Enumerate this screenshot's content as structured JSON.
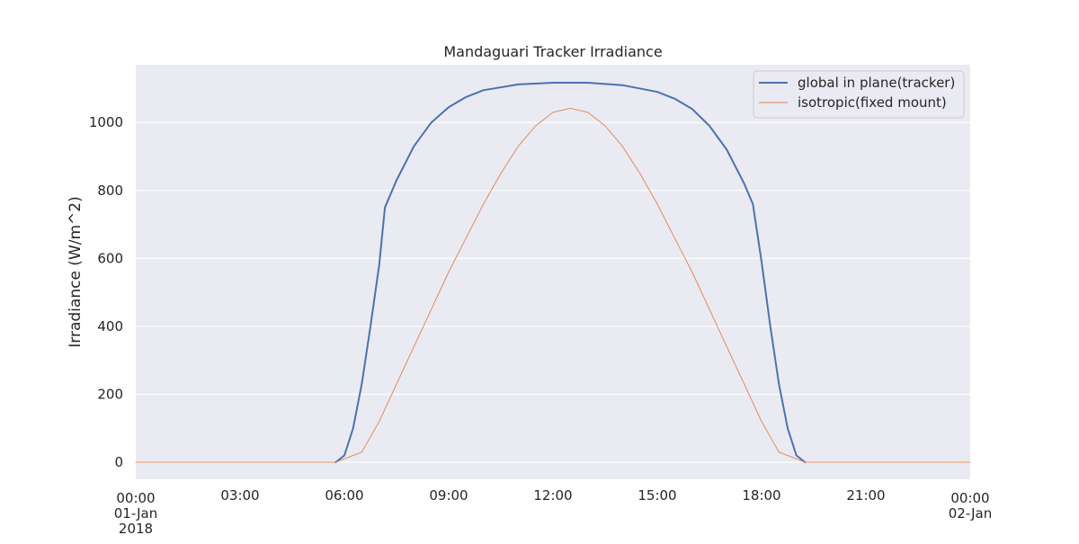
{
  "chart_data": {
    "type": "line",
    "title": "Mandaguari Tracker Irradiance",
    "xlabel": "",
    "ylabel": "Irradiance (W/m^2)",
    "xlim": [
      "2018-01-01 00:00",
      "2018-01-02 00:00"
    ],
    "ylim": [
      -50,
      1170
    ],
    "grid": true,
    "legend_position": "top-right",
    "y_ticks": [
      0,
      200,
      400,
      600,
      800,
      1000
    ],
    "x_ticks": [
      {
        "time": "2018-01-01 00:00",
        "label": [
          "00:00",
          "01-Jan",
          "2018"
        ]
      },
      {
        "time": "2018-01-01 03:00",
        "label": [
          "03:00"
        ]
      },
      {
        "time": "2018-01-01 06:00",
        "label": [
          "06:00"
        ]
      },
      {
        "time": "2018-01-01 09:00",
        "label": [
          "09:00"
        ]
      },
      {
        "time": "2018-01-01 12:00",
        "label": [
          "12:00"
        ]
      },
      {
        "time": "2018-01-01 15:00",
        "label": [
          "15:00"
        ]
      },
      {
        "time": "2018-01-01 18:00",
        "label": [
          "18:00"
        ]
      },
      {
        "time": "2018-01-01 21:00",
        "label": [
          "21:00"
        ]
      },
      {
        "time": "2018-01-02 00:00",
        "label": [
          "00:00",
          "02-Jan"
        ]
      }
    ],
    "series": [
      {
        "name": "global in plane(tracker)",
        "color": "#4c72b0",
        "line_width": "thick",
        "points": [
          [
            "2018-01-01 05:45",
            0
          ],
          [
            "2018-01-01 06:00",
            20
          ],
          [
            "2018-01-01 06:15",
            100
          ],
          [
            "2018-01-01 06:30",
            230
          ],
          [
            "2018-01-01 06:45",
            400
          ],
          [
            "2018-01-01 07:00",
            580
          ],
          [
            "2018-01-01 07:10",
            750
          ],
          [
            "2018-01-01 07:30",
            830
          ],
          [
            "2018-01-01 08:00",
            930
          ],
          [
            "2018-01-01 08:30",
            1000
          ],
          [
            "2018-01-01 09:00",
            1045
          ],
          [
            "2018-01-01 09:30",
            1075
          ],
          [
            "2018-01-01 10:00",
            1095
          ],
          [
            "2018-01-01 11:00",
            1112
          ],
          [
            "2018-01-01 12:00",
            1117
          ],
          [
            "2018-01-01 13:00",
            1117
          ],
          [
            "2018-01-01 14:00",
            1110
          ],
          [
            "2018-01-01 15:00",
            1090
          ],
          [
            "2018-01-01 15:30",
            1070
          ],
          [
            "2018-01-01 16:00",
            1040
          ],
          [
            "2018-01-01 16:30",
            990
          ],
          [
            "2018-01-01 17:00",
            920
          ],
          [
            "2018-01-01 17:30",
            820
          ],
          [
            "2018-01-01 17:45",
            760
          ],
          [
            "2018-01-01 18:00",
            590
          ],
          [
            "2018-01-01 18:15",
            400
          ],
          [
            "2018-01-01 18:30",
            230
          ],
          [
            "2018-01-01 18:45",
            100
          ],
          [
            "2018-01-01 19:00",
            20
          ],
          [
            "2018-01-01 19:15",
            0
          ]
        ]
      },
      {
        "name": "isotropic(fixed mount)",
        "color": "#dd8452",
        "line_width": "thin",
        "points": [
          [
            "2018-01-01 00:00",
            0
          ],
          [
            "2018-01-01 05:45",
            0
          ],
          [
            "2018-01-01 06:30",
            30
          ],
          [
            "2018-01-01 07:00",
            120
          ],
          [
            "2018-01-01 07:30",
            230
          ],
          [
            "2018-01-01 08:00",
            340
          ],
          [
            "2018-01-01 08:30",
            450
          ],
          [
            "2018-01-01 09:00",
            560
          ],
          [
            "2018-01-01 09:30",
            660
          ],
          [
            "2018-01-01 10:00",
            760
          ],
          [
            "2018-01-01 10:30",
            850
          ],
          [
            "2018-01-01 11:00",
            930
          ],
          [
            "2018-01-01 11:30",
            990
          ],
          [
            "2018-01-01 12:00",
            1030
          ],
          [
            "2018-01-01 12:30",
            1042
          ],
          [
            "2018-01-01 13:00",
            1030
          ],
          [
            "2018-01-01 13:30",
            990
          ],
          [
            "2018-01-01 14:00",
            930
          ],
          [
            "2018-01-01 14:30",
            850
          ],
          [
            "2018-01-01 15:00",
            760
          ],
          [
            "2018-01-01 15:30",
            660
          ],
          [
            "2018-01-01 16:00",
            560
          ],
          [
            "2018-01-01 16:30",
            450
          ],
          [
            "2018-01-01 17:00",
            340
          ],
          [
            "2018-01-01 17:30",
            230
          ],
          [
            "2018-01-01 18:00",
            120
          ],
          [
            "2018-01-01 18:30",
            30
          ],
          [
            "2018-01-01 19:15",
            0
          ],
          [
            "2018-01-02 00:00",
            0
          ]
        ]
      }
    ]
  }
}
